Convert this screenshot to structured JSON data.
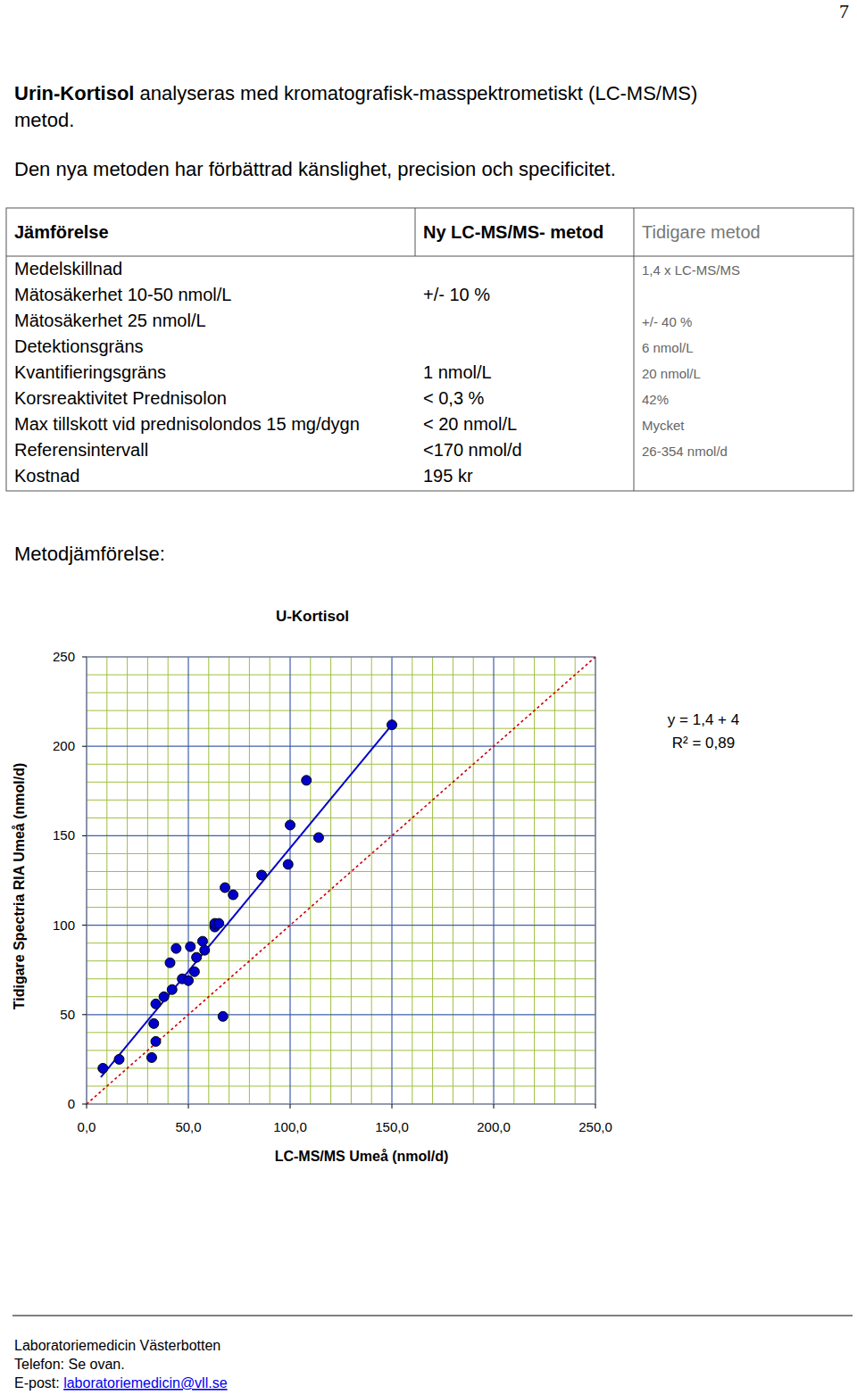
{
  "page_number": "7",
  "intro": {
    "lead": "Urin-Kortisol",
    "lines": [
      " analyseras med kromatografisk-masspektrometiskt (LC-MS/MS)",
      "metod."
    ]
  },
  "paragraph": "Den nya metoden har förbättrad känslighet, precision och specificitet.",
  "table": {
    "header": [
      "Jämförelse",
      "Ny LC-MS/MS- metod",
      "Tidigare metod"
    ],
    "rows": [
      [
        "Medelskillnad",
        null,
        "1,4 x LC-MS/MS"
      ],
      [
        "Mätosäkerhet 10-50 nmol/L",
        "+/- 10 %",
        null
      ],
      [
        "Mätosäkerhet 25 nmol/L",
        null,
        "+/- 40 %"
      ],
      [
        "Detektionsgräns",
        null,
        "6 nmol/L"
      ],
      [
        "Kvantifieringsgräns",
        "1 nmol/L",
        "20 nmol/L"
      ],
      [
        "Korsreaktivitet Prednisolon",
        "< 0,3 %",
        "42%"
      ],
      [
        "Max tillskott vid prednisolondos 15 mg/dygn",
        "< 20 nmol/L",
        "Mycket"
      ],
      [
        "Referensintervall",
        "<170 nmol/d",
        "26-354 nmol/d"
      ],
      [
        "Kostnad",
        "195 kr",
        null
      ]
    ]
  },
  "section_title": "Metodjämförelse:",
  "chart_data": {
    "type": "scatter",
    "title": "U-Kortisol",
    "x_label": "LC-MS/MS Umeå (nmol/d)",
    "y_label": "Tidigare Spectria RIA Umeå (nmol/d)",
    "annotations": [
      "y = 1,4 + 4",
      "R² = 0,89"
    ],
    "xlim": [
      0,
      250
    ],
    "ylim": [
      0,
      250
    ],
    "xticks": [
      {
        "value": 0,
        "label": "0,0"
      },
      {
        "value": 50,
        "label": "50,0"
      },
      {
        "value": 100,
        "label": "100,0"
      },
      {
        "value": 150,
        "label": "150,0"
      },
      {
        "value": 200,
        "label": "200,0"
      },
      {
        "value": 250,
        "label": "250,0"
      }
    ],
    "yticks": [
      0,
      50,
      100,
      150,
      200,
      250
    ],
    "grid": true,
    "series": [
      {
        "type": "scatter",
        "color": "#0000cc",
        "marker": "circle",
        "x": [
          8,
          16,
          32,
          34,
          33,
          34,
          38,
          42,
          41,
          44,
          47,
          50,
          51,
          53,
          54,
          57,
          58,
          63,
          63,
          65,
          67,
          68,
          72,
          86,
          99,
          100,
          108,
          114,
          150
        ],
        "values": [
          20,
          25,
          26,
          35,
          45,
          56,
          60,
          64,
          79,
          87,
          70,
          69,
          88,
          74,
          82,
          91,
          86,
          99,
          101,
          101,
          49,
          121,
          117,
          128,
          134,
          156,
          181,
          149,
          212
        ]
      },
      {
        "type": "line",
        "color": "#0000cc",
        "line_style": "solid",
        "x": [
          7,
          150
        ],
        "values": [
          15,
          212
        ]
      },
      {
        "type": "line",
        "color": "#cc0000",
        "line_style": "dotted",
        "x": [
          0,
          250
        ],
        "values": [
          0,
          250
        ]
      }
    ]
  },
  "footer": {
    "lines": [
      "Laboratoriemedicin Västerbotten",
      "Telefon: Se ovan."
    ],
    "email_label": "E-post: ",
    "email": "laboratoriemedicin@vll.se"
  }
}
